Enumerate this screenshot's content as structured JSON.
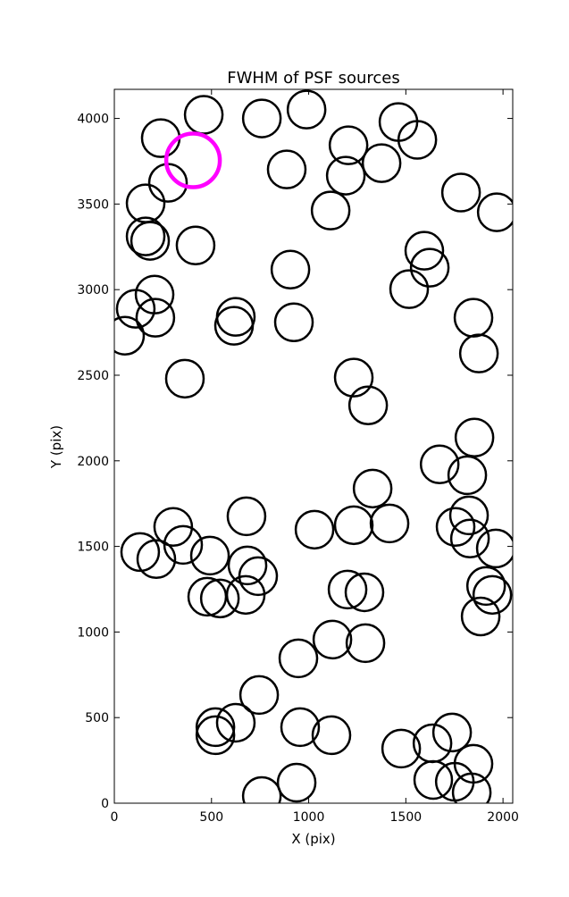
{
  "chart_data": {
    "type": "scatter",
    "title": "FWHM of PSF sources",
    "x_label": "X (pix)",
    "y_label": "Y (pix)",
    "xlim": [
      0,
      2050
    ],
    "ylim": [
      0,
      4170
    ],
    "xticks": [
      0,
      500,
      1000,
      1500,
      2000
    ],
    "yticks": [
      0,
      500,
      1000,
      1500,
      2000,
      2500,
      3000,
      3500,
      4000
    ],
    "series": [
      {
        "color": "#000000",
        "x": [
          460,
          239,
          759,
          989,
          1462,
          1559,
          1205,
          1375,
          1191,
          887,
          276,
          161,
          1784,
          1968,
          1113,
          161,
          184,
          418,
          1595,
          1623,
          906,
          1517,
          207,
          110,
          211,
          625,
          616,
          924,
          1848,
          55,
          1876,
          363,
          1232,
          1306,
          1853,
          1674,
          1816,
          1329,
          680,
          1825,
          303,
          1030,
          1232,
          1416,
          1756,
          1830,
          133,
          354,
          1963,
          216,
          492,
          685,
          740,
          478,
          543,
          676,
          1200,
          1287,
          1913,
          1945,
          1885,
          1122,
          1292,
          947,
          745,
          520,
          520,
          625,
          956,
          1117,
          1476,
          1637,
          1738,
          1848,
          1641,
          1752,
          1839,
          759,
          938
        ],
        "values": [
          4021,
          3885,
          4000,
          4052,
          3979,
          3875,
          3843,
          3739,
          3666,
          3702,
          3624,
          3504,
          3567,
          3452,
          3462,
          3311,
          3285,
          3258,
          3227,
          3128,
          3117,
          3003,
          2971,
          2888,
          2836,
          2841,
          2789,
          2809,
          2836,
          2731,
          2627,
          2480,
          2486,
          2324,
          2136,
          1979,
          1916,
          1838,
          1676,
          1681,
          1614,
          1598,
          1624,
          1634,
          1614,
          1546,
          1467,
          1509,
          1488,
          1426,
          1446,
          1389,
          1326,
          1206,
          1196,
          1217,
          1248,
          1232,
          1269,
          1217,
          1091,
          956,
          935,
          846,
          632,
          444,
          397,
          470,
          444,
          397,
          319,
          350,
          413,
          230,
          136,
          125,
          63,
          42,
          120
        ]
      },
      {
        "color": "#ff00ff",
        "x": [
          405
        ],
        "values": [
          3755
        ]
      }
    ]
  }
}
